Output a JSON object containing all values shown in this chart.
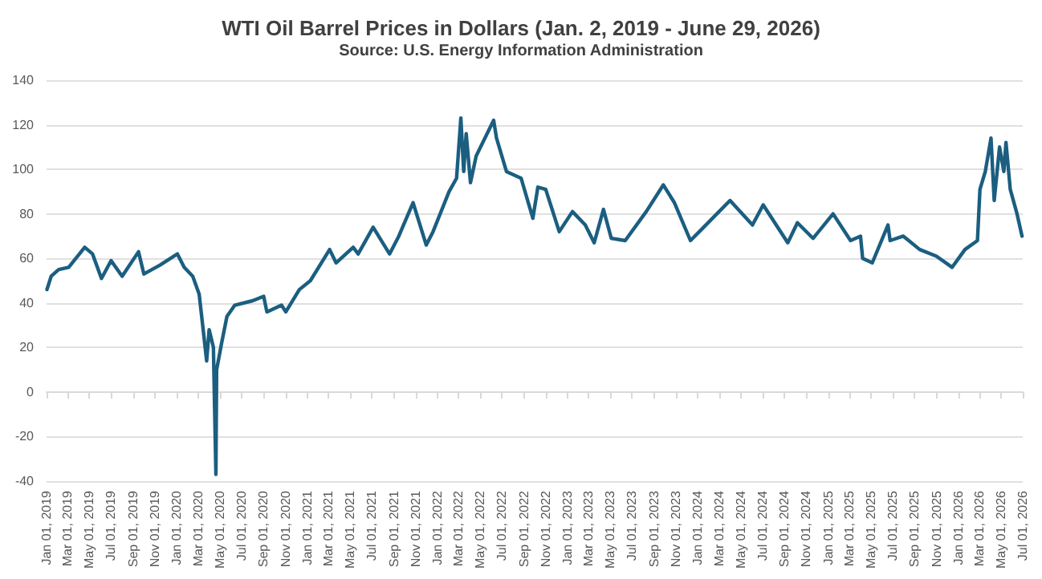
{
  "chart_data": {
    "type": "line",
    "title": "WTI Oil Barrel Prices in Dollars (Jan. 2, 2019 - June 29, 2026)",
    "subtitle": "Source: U.S. Energy Information Administration",
    "grid": "y",
    "marker": "none",
    "line_style": "solid",
    "ylim": [
      -40,
      140
    ],
    "yticks": [
      -40,
      -20,
      0,
      20,
      40,
      60,
      80,
      100,
      120,
      140
    ],
    "xlim": [
      "2019-01-01",
      "2026-07-01"
    ],
    "xticks": [
      {
        "value": "2019-01-01",
        "label": "Jan 01, 2019"
      },
      {
        "value": "2019-03-01",
        "label": "Mar 01, 2019"
      },
      {
        "value": "2019-05-01",
        "label": "May 01, 2019"
      },
      {
        "value": "2019-07-01",
        "label": "Jul 01, 2019"
      },
      {
        "value": "2019-09-01",
        "label": "Sep 01, 2019"
      },
      {
        "value": "2019-11-01",
        "label": "Nov 01, 2019"
      },
      {
        "value": "2020-01-01",
        "label": "Jan 01, 2020"
      },
      {
        "value": "2020-03-01",
        "label": "Mar 01, 2020"
      },
      {
        "value": "2020-05-01",
        "label": "May 01, 2020"
      },
      {
        "value": "2020-07-01",
        "label": "Jul 01, 2020"
      },
      {
        "value": "2020-09-01",
        "label": "Sep 01, 2020"
      },
      {
        "value": "2020-11-01",
        "label": "Nov 01, 2020"
      },
      {
        "value": "2021-01-01",
        "label": "Jan 01, 2021"
      },
      {
        "value": "2021-03-01",
        "label": "Mar 01, 2021"
      },
      {
        "value": "2021-05-01",
        "label": "May 01, 2021"
      },
      {
        "value": "2021-07-01",
        "label": "Jul 01, 2021"
      },
      {
        "value": "2021-09-01",
        "label": "Sep 01, 2021"
      },
      {
        "value": "2021-11-01",
        "label": "Nov 01, 2021"
      },
      {
        "value": "2022-01-01",
        "label": "Jan 01, 2022"
      },
      {
        "value": "2022-03-01",
        "label": "Mar 01, 2022"
      },
      {
        "value": "2022-05-01",
        "label": "May 01, 2022"
      },
      {
        "value": "2022-07-01",
        "label": "Jul 01, 2022"
      },
      {
        "value": "2022-09-01",
        "label": "Sep 01, 2022"
      },
      {
        "value": "2022-11-01",
        "label": "Nov 01, 2022"
      },
      {
        "value": "2023-01-01",
        "label": "Jan 01, 2023"
      },
      {
        "value": "2023-03-01",
        "label": "Mar 01, 2023"
      },
      {
        "value": "2023-05-01",
        "label": "May 01, 2023"
      },
      {
        "value": "2023-07-01",
        "label": "Jul 01, 2023"
      },
      {
        "value": "2023-09-01",
        "label": "Sep 01, 2023"
      },
      {
        "value": "2023-11-01",
        "label": "Nov 01, 2023"
      },
      {
        "value": "2024-01-01",
        "label": "Jan 01, 2024"
      },
      {
        "value": "2024-03-01",
        "label": "Mar 01, 2024"
      },
      {
        "value": "2024-05-01",
        "label": "May 01, 2024"
      },
      {
        "value": "2024-07-01",
        "label": "Jul 01, 2024"
      },
      {
        "value": "2024-09-01",
        "label": "Sep 01, 2024"
      },
      {
        "value": "2024-11-01",
        "label": "Nov 01, 2024"
      },
      {
        "value": "2025-01-01",
        "label": "Jan 01, 2025"
      },
      {
        "value": "2025-03-01",
        "label": "Mar 01, 2025"
      },
      {
        "value": "2025-05-01",
        "label": "May 01, 2025"
      },
      {
        "value": "2025-07-01",
        "label": "Jul 01, 2025"
      },
      {
        "value": "2025-09-01",
        "label": "Sep 01, 2025"
      },
      {
        "value": "2025-11-01",
        "label": "Nov 01, 2025"
      },
      {
        "value": "2026-01-01",
        "label": "Jan 01, 2026"
      },
      {
        "value": "2026-03-01",
        "label": "Mar 01, 2026"
      },
      {
        "value": "2026-05-01",
        "label": "May 01, 2026"
      },
      {
        "value": "2026-07-01",
        "label": "Jul 01, 2026"
      }
    ],
    "series": [
      {
        "color": "#1b5e80",
        "x": [
          "2019-01-02",
          "2019-01-14",
          "2019-02-04",
          "2019-03-04",
          "2019-04-18",
          "2019-05-10",
          "2019-06-04",
          "2019-07-01",
          "2019-08-01",
          "2019-09-16",
          "2019-10-01",
          "2019-11-15",
          "2020-01-03",
          "2020-01-22",
          "2020-02-15",
          "2020-03-04",
          "2020-03-16",
          "2020-03-25",
          "2020-04-01",
          "2020-04-13",
          "2020-04-20",
          "2020-04-22",
          "2020-05-06",
          "2020-05-21",
          "2020-06-12",
          "2020-08-01",
          "2020-09-01",
          "2020-09-10",
          "2020-10-21",
          "2020-11-02",
          "2020-12-10",
          "2021-01-10",
          "2021-03-05",
          "2021-03-23",
          "2021-05-10",
          "2021-05-24",
          "2021-07-05",
          "2021-08-20",
          "2021-09-15",
          "2021-10-25",
          "2021-12-01",
          "2021-12-20",
          "2022-02-03",
          "2022-02-24",
          "2022-03-08",
          "2022-03-16",
          "2022-03-23",
          "2022-04-04",
          "2022-04-20",
          "2022-06-08",
          "2022-06-16",
          "2022-07-14",
          "2022-08-24",
          "2022-09-26",
          "2022-10-10",
          "2022-11-01",
          "2022-12-09",
          "2023-01-15",
          "2023-02-20",
          "2023-03-17",
          "2023-04-12",
          "2023-05-04",
          "2023-06-12",
          "2023-08-10",
          "2023-09-27",
          "2023-10-28",
          "2023-12-12",
          "2024-01-12",
          "2024-04-01",
          "2024-06-03",
          "2024-07-03",
          "2024-09-10",
          "2024-10-07",
          "2024-11-20",
          "2025-01-15",
          "2025-03-05",
          "2025-04-02",
          "2025-04-08",
          "2025-05-05",
          "2025-06-18",
          "2025-06-24",
          "2025-07-31",
          "2025-09-15",
          "2025-11-01",
          "2025-12-15",
          "2026-01-20",
          "2026-02-24",
          "2026-03-03",
          "2026-03-18",
          "2026-04-03",
          "2026-04-12",
          "2026-04-27",
          "2026-05-09",
          "2026-05-15",
          "2026-05-27",
          "2026-06-15",
          "2026-06-29"
        ],
        "values": [
          46,
          52,
          55,
          56,
          65,
          62,
          51,
          59,
          52,
          63,
          53,
          57,
          62,
          56,
          52,
          44,
          27,
          14,
          28,
          20,
          -37,
          10,
          22,
          34,
          39,
          41,
          43,
          36,
          39,
          36,
          46,
          50,
          64,
          58,
          65,
          62,
          74,
          62,
          70,
          85,
          66,
          72,
          90,
          96,
          123,
          99,
          116,
          94,
          106,
          122,
          114,
          99,
          96,
          78,
          92,
          91,
          72,
          81,
          75,
          67,
          82,
          69,
          68,
          81,
          93,
          85,
          68,
          73,
          86,
          75,
          84,
          67,
          76,
          69,
          80,
          68,
          70,
          60,
          58,
          75,
          68,
          70,
          64,
          61,
          56,
          64,
          68,
          91,
          99,
          114,
          86,
          110,
          99,
          112,
          91,
          80,
          70
        ]
      }
    ]
  }
}
